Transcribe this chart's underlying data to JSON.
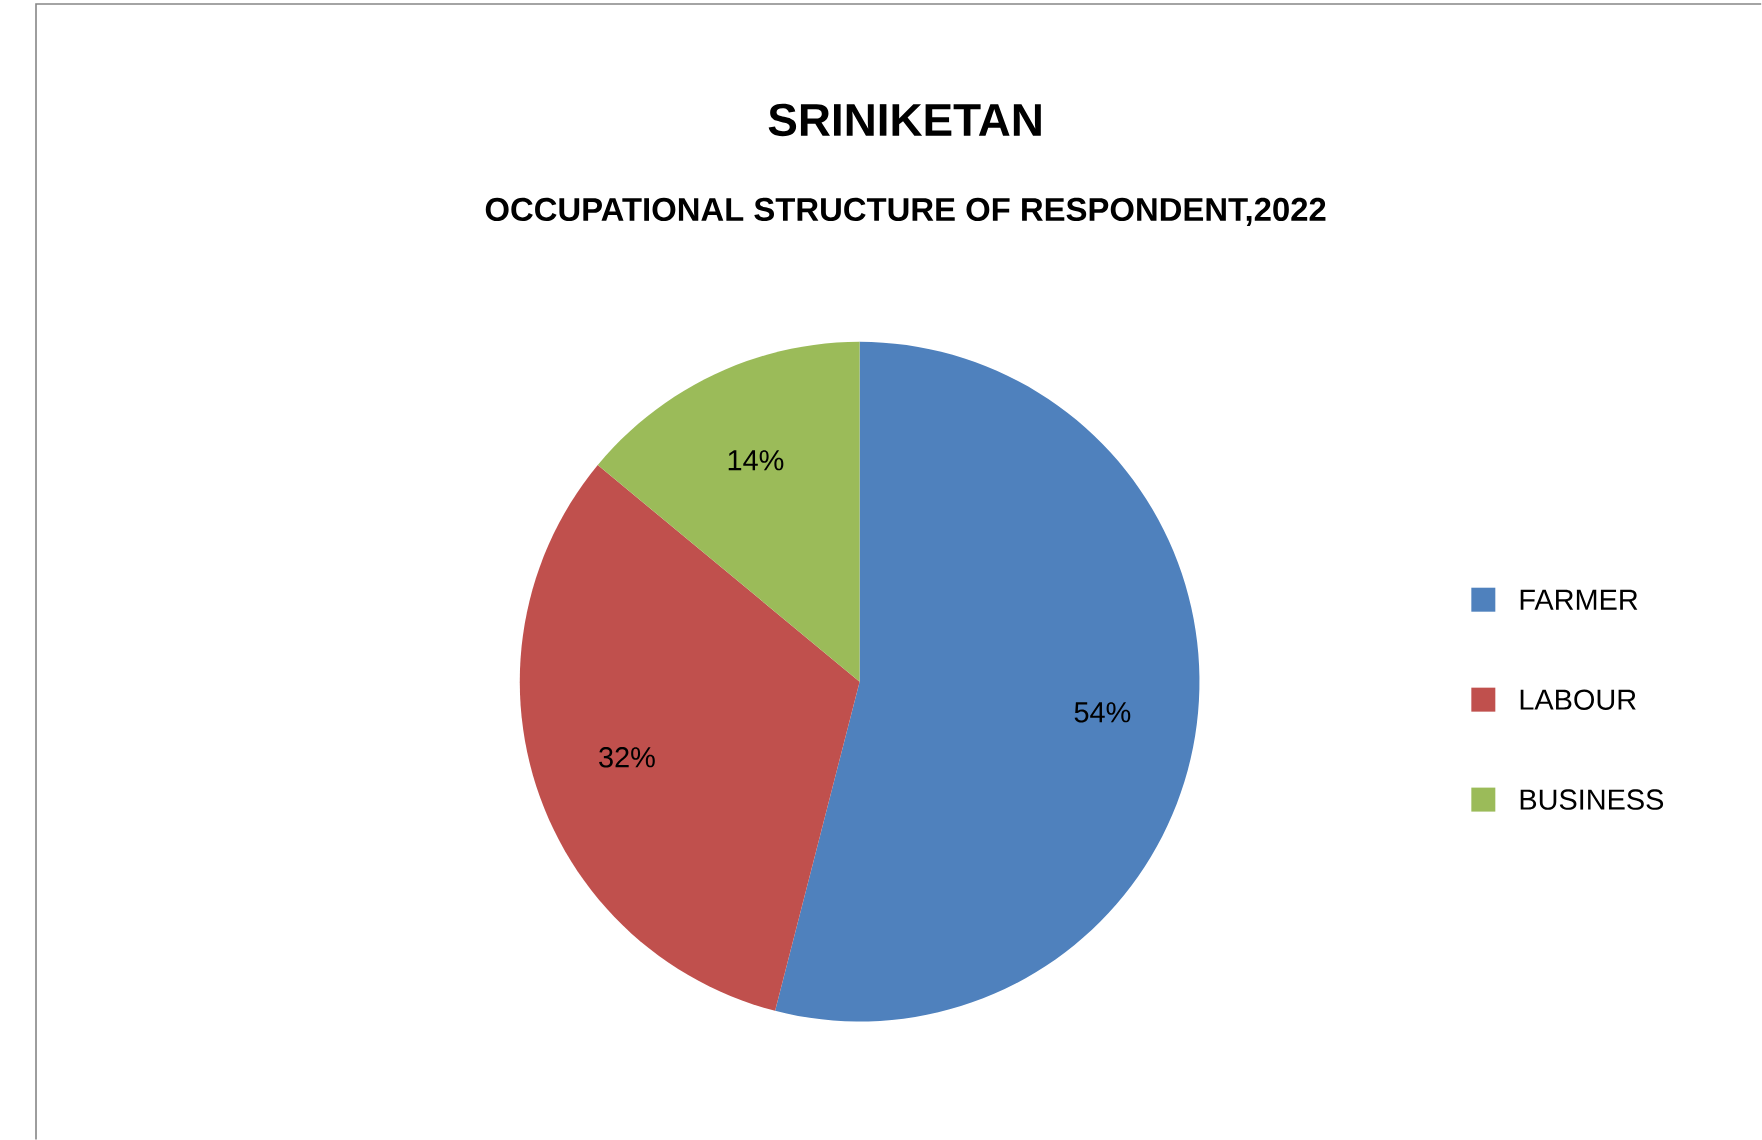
{
  "chart_data": {
    "type": "pie",
    "title": "SRINIKETAN",
    "subtitle": "OCCUPATIONAL STRUCTURE OF RESPONDENT,2022",
    "categories": [
      "FARMER",
      "LABOUR",
      "BUSINESS"
    ],
    "values": [
      54,
      32,
      14
    ],
    "value_labels": [
      "54%",
      "32%",
      "14%"
    ],
    "colors": [
      "#4f81bd",
      "#c0504d",
      "#9bbb59"
    ],
    "legend": "right"
  }
}
